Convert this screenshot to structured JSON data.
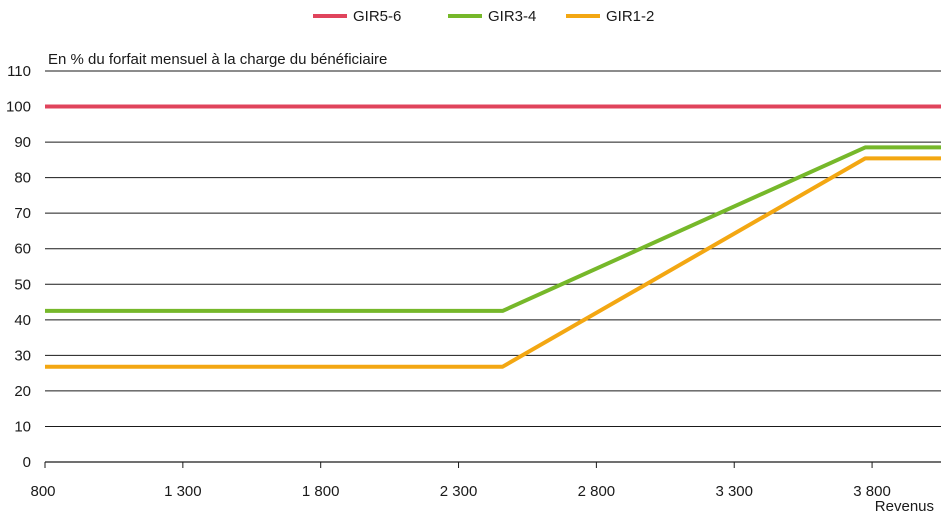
{
  "chart_data": {
    "type": "line",
    "title": "",
    "ylabel": "En % du forfait mensuel à la charge du bénéficiaire",
    "xlabel": "Revenus",
    "xlim": [
      800,
      4050
    ],
    "ylim": [
      0,
      110
    ],
    "x_ticks": [
      800,
      1300,
      1800,
      2300,
      2800,
      3300,
      3800
    ],
    "x_tick_labels": [
      "800",
      "1 300",
      "1 800",
      "2 300",
      "2 800",
      "3 300",
      "3 800"
    ],
    "y_ticks": [
      0,
      10,
      20,
      30,
      40,
      50,
      60,
      70,
      80,
      90,
      100,
      110
    ],
    "y_tick_labels": [
      "0",
      "10",
      "20",
      "30",
      "40",
      "50",
      "60",
      "70",
      "80",
      "90",
      "100",
      "110"
    ],
    "grid": "horizontal",
    "legend_position": "top-center",
    "series": [
      {
        "name": "GIR5-6",
        "color": "#e0445c",
        "points": [
          [
            800,
            100
          ],
          [
            4050,
            100
          ]
        ]
      },
      {
        "name": "GIR3-4",
        "color": "#76b82a",
        "points": [
          [
            800,
            42.5
          ],
          [
            2460,
            42.5
          ],
          [
            3775,
            88.5
          ],
          [
            4050,
            88.5
          ]
        ]
      },
      {
        "name": "GIR1-2",
        "color": "#f3a712",
        "points": [
          [
            800,
            26.8
          ],
          [
            2460,
            26.8
          ],
          [
            3775,
            85.4
          ],
          [
            4050,
            85.4
          ]
        ]
      }
    ]
  }
}
